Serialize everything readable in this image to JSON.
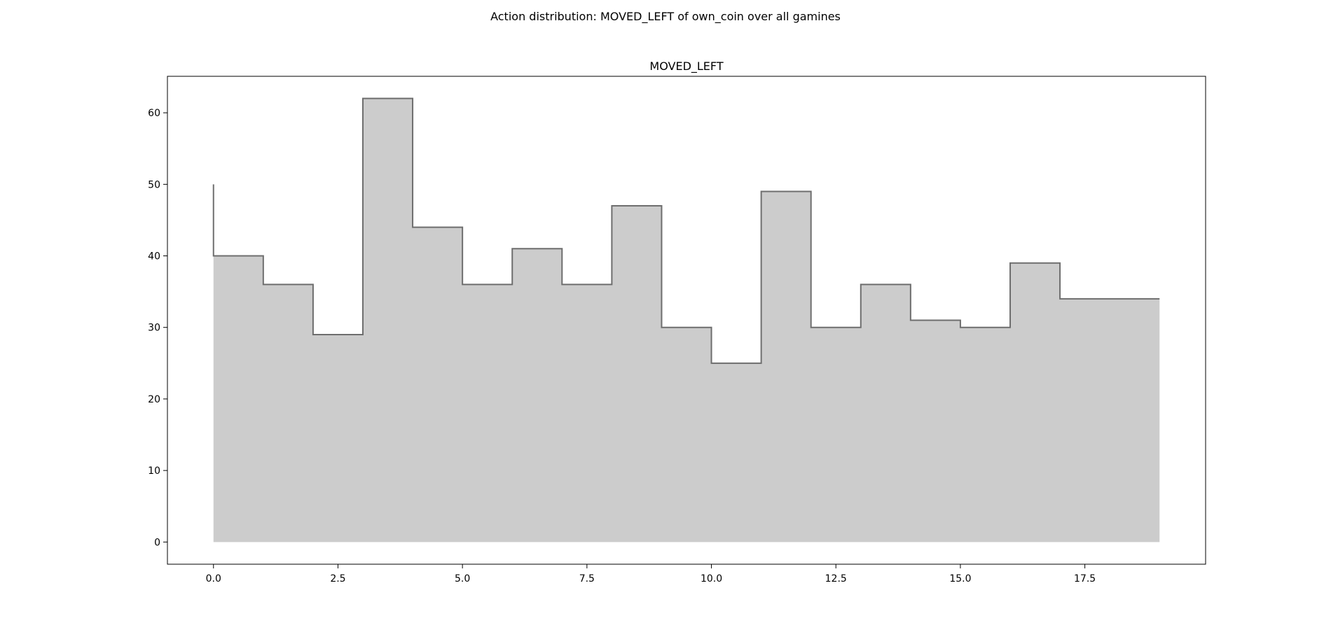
{
  "figure": {
    "suptitle": "Action distribution: MOVED_LEFT of own_coin over all gamines"
  },
  "chart_data": {
    "type": "area",
    "title": "MOVED_LEFT",
    "xlabel": "",
    "ylabel": "",
    "xlim": [
      -0.925,
      19.925
    ],
    "ylim": [
      -3.1,
      65.1
    ],
    "xticks": [
      0.0,
      2.5,
      5.0,
      7.5,
      10.0,
      12.5,
      15.0,
      17.5
    ],
    "xtick_labels": [
      "0.0",
      "2.5",
      "5.0",
      "7.5",
      "10.0",
      "12.5",
      "15.0",
      "17.5"
    ],
    "yticks": [
      0,
      10,
      20,
      30,
      40,
      50,
      60
    ],
    "ytick_labels": [
      "0",
      "10",
      "20",
      "30",
      "40",
      "50",
      "60"
    ],
    "step": "post",
    "x": [
      0,
      1,
      2,
      3,
      4,
      5,
      6,
      7,
      8,
      9,
      10,
      11,
      12,
      13,
      14,
      15,
      16,
      17,
      18,
      19
    ],
    "series": [
      {
        "values": [
          40,
          36,
          29,
          62,
          44,
          36,
          41,
          36,
          47,
          30,
          25,
          49,
          30,
          36,
          31,
          30,
          39,
          34,
          34,
          34
        ],
        "start_spike": 50
      }
    ],
    "fill_color": "#cccccc",
    "line_color": "#6e6e6e",
    "grid": false
  }
}
